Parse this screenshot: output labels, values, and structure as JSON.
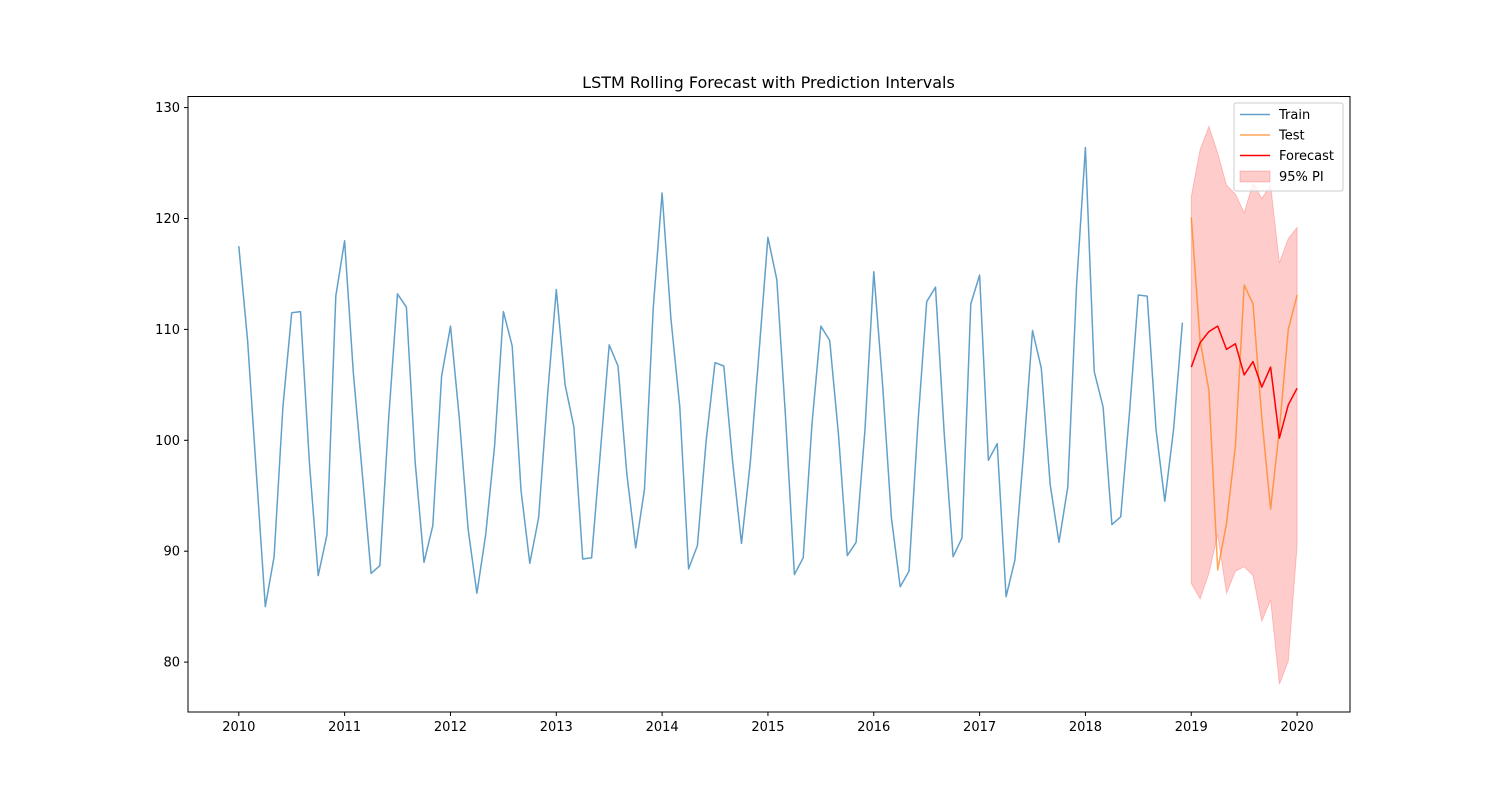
{
  "chart_data": {
    "type": "line",
    "title": "LSTM Rolling Forecast with Prediction Intervals",
    "xlabel": "",
    "ylabel": "",
    "xlim": [
      2009.52,
      2020.5
    ],
    "ylim": [
      75.5,
      131
    ],
    "x_ticks": [
      "2010",
      "2011",
      "2012",
      "2013",
      "2014",
      "2015",
      "2016",
      "2017",
      "2018",
      "2019",
      "2020"
    ],
    "x_tick_values": [
      2010,
      2011,
      2012,
      2013,
      2014,
      2015,
      2016,
      2017,
      2018,
      2019,
      2020
    ],
    "y_ticks": [
      "80",
      "90",
      "100",
      "110",
      "120",
      "130"
    ],
    "y_tick_values": [
      80,
      90,
      100,
      110,
      120,
      130
    ],
    "grid": false,
    "legend_position": "top-right",
    "legend": [
      "Train",
      "Test",
      "Forecast",
      "95% PI"
    ],
    "colors": {
      "train": "#1f77b4",
      "test": "#ff7f0e",
      "forecast": "#ff0000",
      "interval": "#ff0000"
    },
    "series": [
      {
        "name": "Train",
        "start": "2010-01",
        "frequency": "monthly",
        "values": [
          117.5,
          109.0,
          97.0,
          85.0,
          89.5,
          103.0,
          111.5,
          111.6,
          98.0,
          87.8,
          91.5,
          113.0,
          118.0,
          106.0,
          97.0,
          88.0,
          88.7,
          102.0,
          113.2,
          112.0,
          98.0,
          89.0,
          92.3,
          105.8,
          110.3,
          102.0,
          92.0,
          86.2,
          91.5,
          99.5,
          111.6,
          108.5,
          95.5,
          88.9,
          93.0,
          104.0,
          113.6,
          105.0,
          101.2,
          89.3,
          89.4,
          99.0,
          108.6,
          106.7,
          97.0,
          90.3,
          95.6,
          112.0,
          122.3,
          111.0,
          103.0,
          88.4,
          90.5,
          100.0,
          107.0,
          106.7,
          98.0,
          90.7,
          98.0,
          108.0,
          118.3,
          114.5,
          102.0,
          87.9,
          89.4,
          101.5,
          110.3,
          109.0,
          100.5,
          89.6,
          90.8,
          101.0,
          115.2,
          105.0,
          93.0,
          86.8,
          88.2,
          101.5,
          112.5,
          113.8,
          100.5,
          89.5,
          91.2,
          112.3,
          114.9,
          98.2,
          99.7,
          85.9,
          89.2,
          99.0,
          109.9,
          106.5,
          96.0,
          90.8,
          95.8,
          114.0,
          126.4,
          106.2,
          103.0,
          92.4,
          93.1,
          102.5,
          113.1,
          113.0,
          101.0,
          94.5,
          101.0,
          110.6
        ]
      },
      {
        "name": "Test",
        "start": "2019-01",
        "frequency": "monthly",
        "values": [
          120.1,
          109.0,
          104.5,
          88.3,
          92.5,
          99.5,
          114.0,
          112.3,
          102.0,
          93.8,
          101.0,
          110.0,
          113.1
        ]
      },
      {
        "name": "Forecast",
        "start": "2019-01",
        "frequency": "monthly",
        "values": [
          106.6,
          108.8,
          109.8,
          110.3,
          108.2,
          108.7,
          105.9,
          107.1,
          104.8,
          106.6,
          100.2,
          103.2,
          104.7
        ]
      }
    ],
    "intervals": [
      {
        "name": "95% PI",
        "start": "2019-01",
        "frequency": "monthly",
        "upper": [
          122.0,
          126.2,
          128.3,
          125.9,
          123.0,
          122.2,
          120.5,
          123.2,
          121.8,
          123.0,
          116.0,
          118.2,
          119.2
        ],
        "lower": [
          87.1,
          85.7,
          88.0,
          91.5,
          86.2,
          88.2,
          88.6,
          87.8,
          83.7,
          85.6,
          78.0,
          80.1,
          90.5
        ]
      }
    ]
  }
}
